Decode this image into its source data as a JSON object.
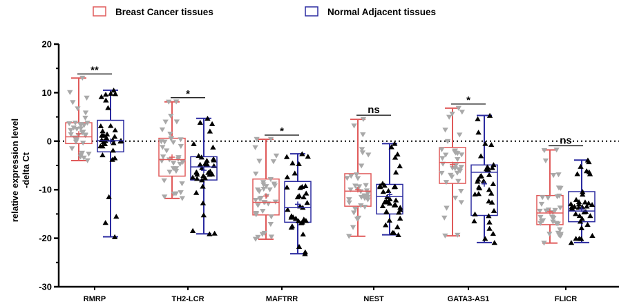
{
  "chart_data": {
    "type": "box",
    "categories": [
      "RMRP",
      "TH2-LCR",
      "MAFTRR",
      "NEST",
      "GATA3-AS1",
      "FLICR"
    ],
    "ylabel_line1": "relative expression level",
    "ylabel_line2": "-delta Ct",
    "ylim": [
      -30,
      20
    ],
    "yticks": [
      -30,
      -20,
      -10,
      0,
      10,
      20
    ],
    "reference_line": 0,
    "legend_position": "top",
    "series": [
      {
        "name": "Breast Cancer tissues",
        "color": "#e05a5a",
        "marker_color": "#a9a9a9",
        "marker": "triangle-down",
        "boxes": [
          {
            "min": -4,
            "q1": -0.5,
            "median": 0.9,
            "q3": 3.8,
            "max": 13.0,
            "mean": 1.5
          },
          {
            "min": -11.8,
            "q1": -7.2,
            "median": -3.8,
            "q3": 0.6,
            "max": 8.1,
            "mean": -3.3
          },
          {
            "min": -20.2,
            "q1": -15.2,
            "median": -12.6,
            "q3": -7.8,
            "max": 0.4,
            "mean": -11.3
          },
          {
            "min": -19.6,
            "q1": -13.4,
            "median": -10.3,
            "q3": -6.7,
            "max": 4.5,
            "mean": -10.0
          },
          {
            "min": -19.5,
            "q1": -8.7,
            "median": -4.4,
            "q3": -1.3,
            "max": 6.8,
            "mean": -4.8
          },
          {
            "min": -21.0,
            "q1": -17.2,
            "median": -14.8,
            "q3": -11.2,
            "max": -1.8,
            "mean": -14.5
          }
        ]
      },
      {
        "name": "Normal Adjacent tissues",
        "color": "#2a2aa0",
        "marker_color": "#000000",
        "marker": "triangle-up",
        "boxes": [
          {
            "min": -19.7,
            "q1": -2.2,
            "median": 0.1,
            "q3": 4.3,
            "max": 10.5,
            "mean": 0.0
          },
          {
            "min": -19.1,
            "q1": -8.0,
            "median": -5.3,
            "q3": -3.2,
            "max": 4.7,
            "mean": -6.0
          },
          {
            "min": -23.2,
            "q1": -16.7,
            "median": -13.7,
            "q3": -8.3,
            "max": -2.6,
            "mean": -13.0
          },
          {
            "min": -19.3,
            "q1": -15.0,
            "median": -11.4,
            "q3": -8.9,
            "max": -0.5,
            "mean": -11.0
          },
          {
            "min": -20.9,
            "q1": -15.3,
            "median": -6.4,
            "q3": -4.9,
            "max": 5.3,
            "mean": -8.8
          },
          {
            "min": -20.9,
            "q1": -16.6,
            "median": -14.4,
            "q3": -10.4,
            "max": -3.9,
            "mean": -14.0
          }
        ]
      }
    ],
    "significance": [
      "**",
      "*",
      "*",
      "ns",
      "*",
      "ns"
    ]
  }
}
